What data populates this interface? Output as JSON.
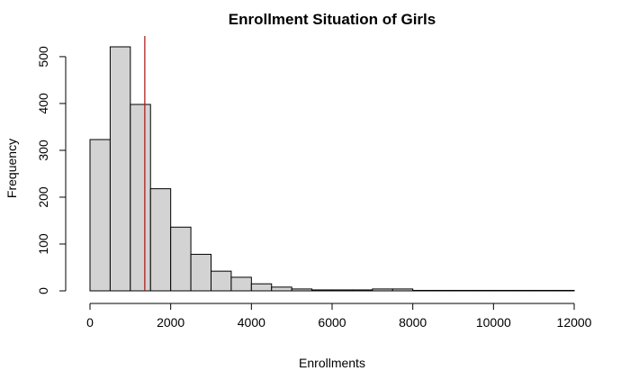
{
  "chart_data": {
    "type": "bar",
    "title": "Enrollment Situation of Girls",
    "xlabel": "Enrollments",
    "ylabel": "Frequency",
    "bin_width": 500,
    "bin_start": 0,
    "values": [
      323,
      521,
      398,
      218,
      136,
      78,
      42,
      29,
      15,
      8,
      4,
      2,
      2,
      2,
      4,
      4,
      1,
      1,
      1,
      1,
      1,
      1,
      1,
      1
    ],
    "xlim": [
      0,
      12000
    ],
    "ylim": [
      0,
      521
    ],
    "xticks": [
      0,
      2000,
      4000,
      6000,
      8000,
      10000,
      12000
    ],
    "yticks": [
      0,
      100,
      200,
      300,
      400,
      500
    ],
    "vline": {
      "x": 1358,
      "color": "#cc0000"
    },
    "bar_fill": "#d3d3d3",
    "grid": false,
    "legend": "none"
  }
}
